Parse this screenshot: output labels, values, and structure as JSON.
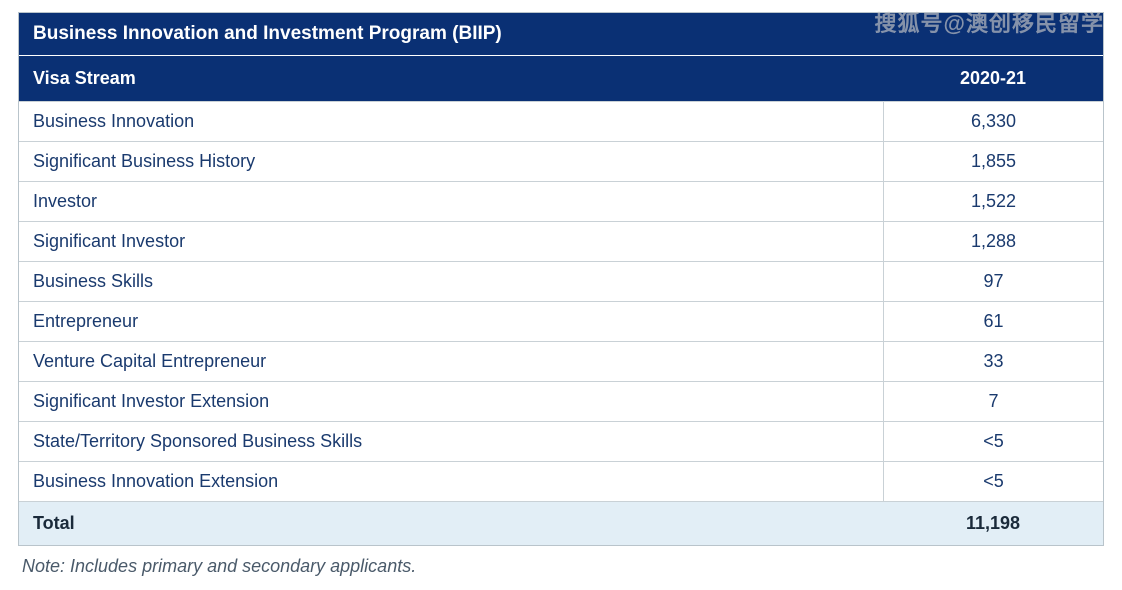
{
  "watermark": "搜狐号@澳创移民留学",
  "table": {
    "title": "Business Innovation and Investment Program (BIIP)",
    "header": {
      "left": "Visa Stream",
      "right": "2020-21"
    },
    "rows": [
      {
        "label": "Business Innovation",
        "value": "6,330"
      },
      {
        "label": "Significant Business History",
        "value": "1,855"
      },
      {
        "label": "Investor",
        "value": "1,522"
      },
      {
        "label": "Significant Investor",
        "value": "1,288"
      },
      {
        "label": "Business Skills",
        "value": "97"
      },
      {
        "label": "Entrepreneur",
        "value": "61"
      },
      {
        "label": "Venture Capital Entrepreneur",
        "value": "33"
      },
      {
        "label": "Significant Investor Extension",
        "value": "7"
      },
      {
        "label": "State/Territory Sponsored Business Skills",
        "value": "<5"
      },
      {
        "label": "Business Innovation Extension",
        "value": "<5"
      }
    ],
    "total": {
      "label": "Total",
      "value": "11,198"
    }
  },
  "note": "Note: Includes primary and secondary applicants.",
  "colors": {
    "header_bg": "#0a3074",
    "header_text": "#ffffff",
    "row_text": "#1a3a6e",
    "border": "#c9d1d6",
    "total_bg": "#e2eef6",
    "note_text": "#4a5a6a"
  }
}
